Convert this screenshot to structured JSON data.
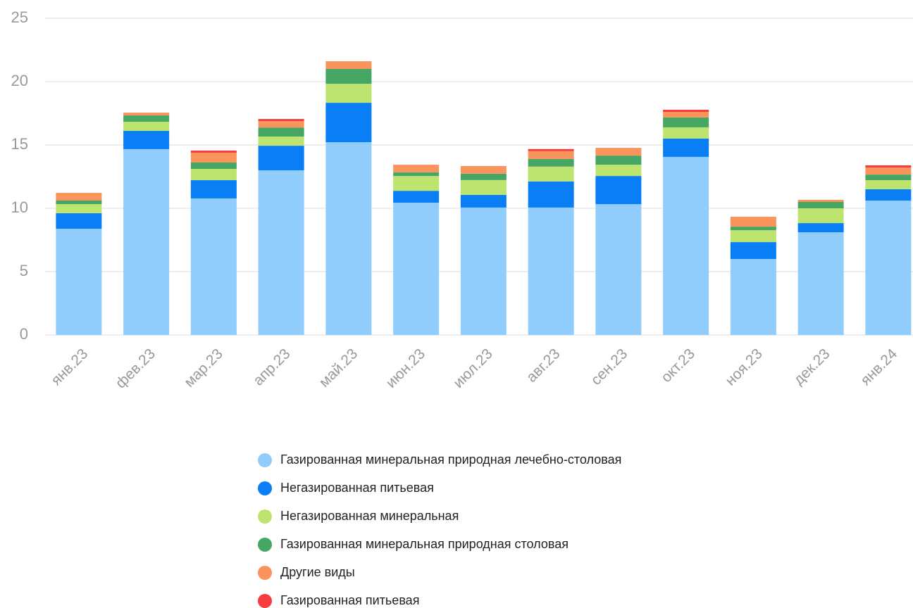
{
  "chart_data": {
    "type": "stacked_bar",
    "categories": [
      "янв.23",
      "фев.23",
      "мар.23",
      "апр.23",
      "май.23",
      "июн.23",
      "июл.23",
      "авг.23",
      "сен.23",
      "окт.23",
      "ноя.23",
      "дек.23",
      "янв.24"
    ],
    "series": [
      {
        "name": "Газированная минеральная природная лечебно-столовая",
        "color": "#90cdfd",
        "values": [
          8.39,
          14.67,
          10.78,
          13.0,
          15.22,
          10.44,
          10.06,
          10.06,
          10.33,
          14.06,
          6.0,
          8.11,
          10.61
        ]
      },
      {
        "name": "Негазированная питьевая",
        "color": "#0a7ef5",
        "values": [
          1.22,
          1.44,
          1.44,
          1.94,
          3.11,
          0.94,
          1.0,
          2.06,
          2.22,
          1.44,
          1.33,
          0.72,
          0.89
        ]
      },
      {
        "name": "Негазированная минеральная",
        "color": "#bde46f",
        "values": [
          0.72,
          0.72,
          0.89,
          0.72,
          1.5,
          1.17,
          1.17,
          1.17,
          0.89,
          0.89,
          0.94,
          1.17,
          0.72
        ]
      },
      {
        "name": "Газированная минеральная природная столовая",
        "color": "#46a764",
        "values": [
          0.28,
          0.5,
          0.5,
          0.72,
          1.17,
          0.28,
          0.5,
          0.61,
          0.72,
          0.78,
          0.28,
          0.5,
          0.44
        ]
      },
      {
        "name": "Другие виды",
        "color": "#f9945d",
        "values": [
          0.61,
          0.22,
          0.78,
          0.5,
          0.61,
          0.61,
          0.61,
          0.61,
          0.61,
          0.44,
          0.78,
          0.17,
          0.56
        ]
      },
      {
        "name": "Газированная питьевая",
        "color": "#f63c3c",
        "values": [
          0,
          0,
          0.17,
          0.17,
          0,
          0,
          0,
          0.17,
          0,
          0.17,
          0,
          0,
          0.17
        ]
      }
    ],
    "ylim": [
      0,
      25
    ],
    "yticks": [
      0,
      5,
      10,
      15,
      20,
      25
    ],
    "grid": true,
    "legend": "bottom"
  }
}
